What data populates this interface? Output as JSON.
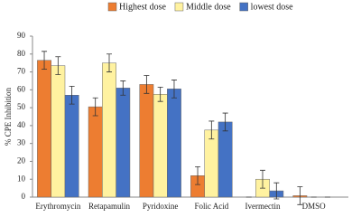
{
  "chart_data": {
    "type": "bar",
    "y_label": "% CPE Inhibition",
    "categories": [
      "Erythromycin",
      "Retapamulin",
      "Pyridoxine",
      "Folic Acid",
      "Ivermectin",
      "DMSO"
    ],
    "series": [
      {
        "name": "Highest dose",
        "color": "#ed7d31",
        "values": [
          76.5,
          50.5,
          63,
          12,
          0,
          0.8
        ],
        "errors": [
          5,
          5,
          5,
          5,
          0,
          5
        ]
      },
      {
        "name": "Middle dose",
        "color": "#fff2a0",
        "values": [
          73.5,
          75,
          57.5,
          37.5,
          10,
          0
        ],
        "errors": [
          5,
          5,
          4,
          5,
          5,
          0
        ]
      },
      {
        "name": "lowest dose",
        "color": "#4472c4",
        "values": [
          57,
          61,
          60.5,
          42,
          3.5,
          0
        ],
        "errors": [
          5,
          4,
          5,
          5,
          4.5,
          0
        ]
      }
    ],
    "ylim": [
      0,
      90
    ],
    "yticks": [
      0,
      10,
      20,
      30,
      40,
      50,
      60,
      70,
      80,
      90
    ],
    "grid": false,
    "legend": "top"
  }
}
